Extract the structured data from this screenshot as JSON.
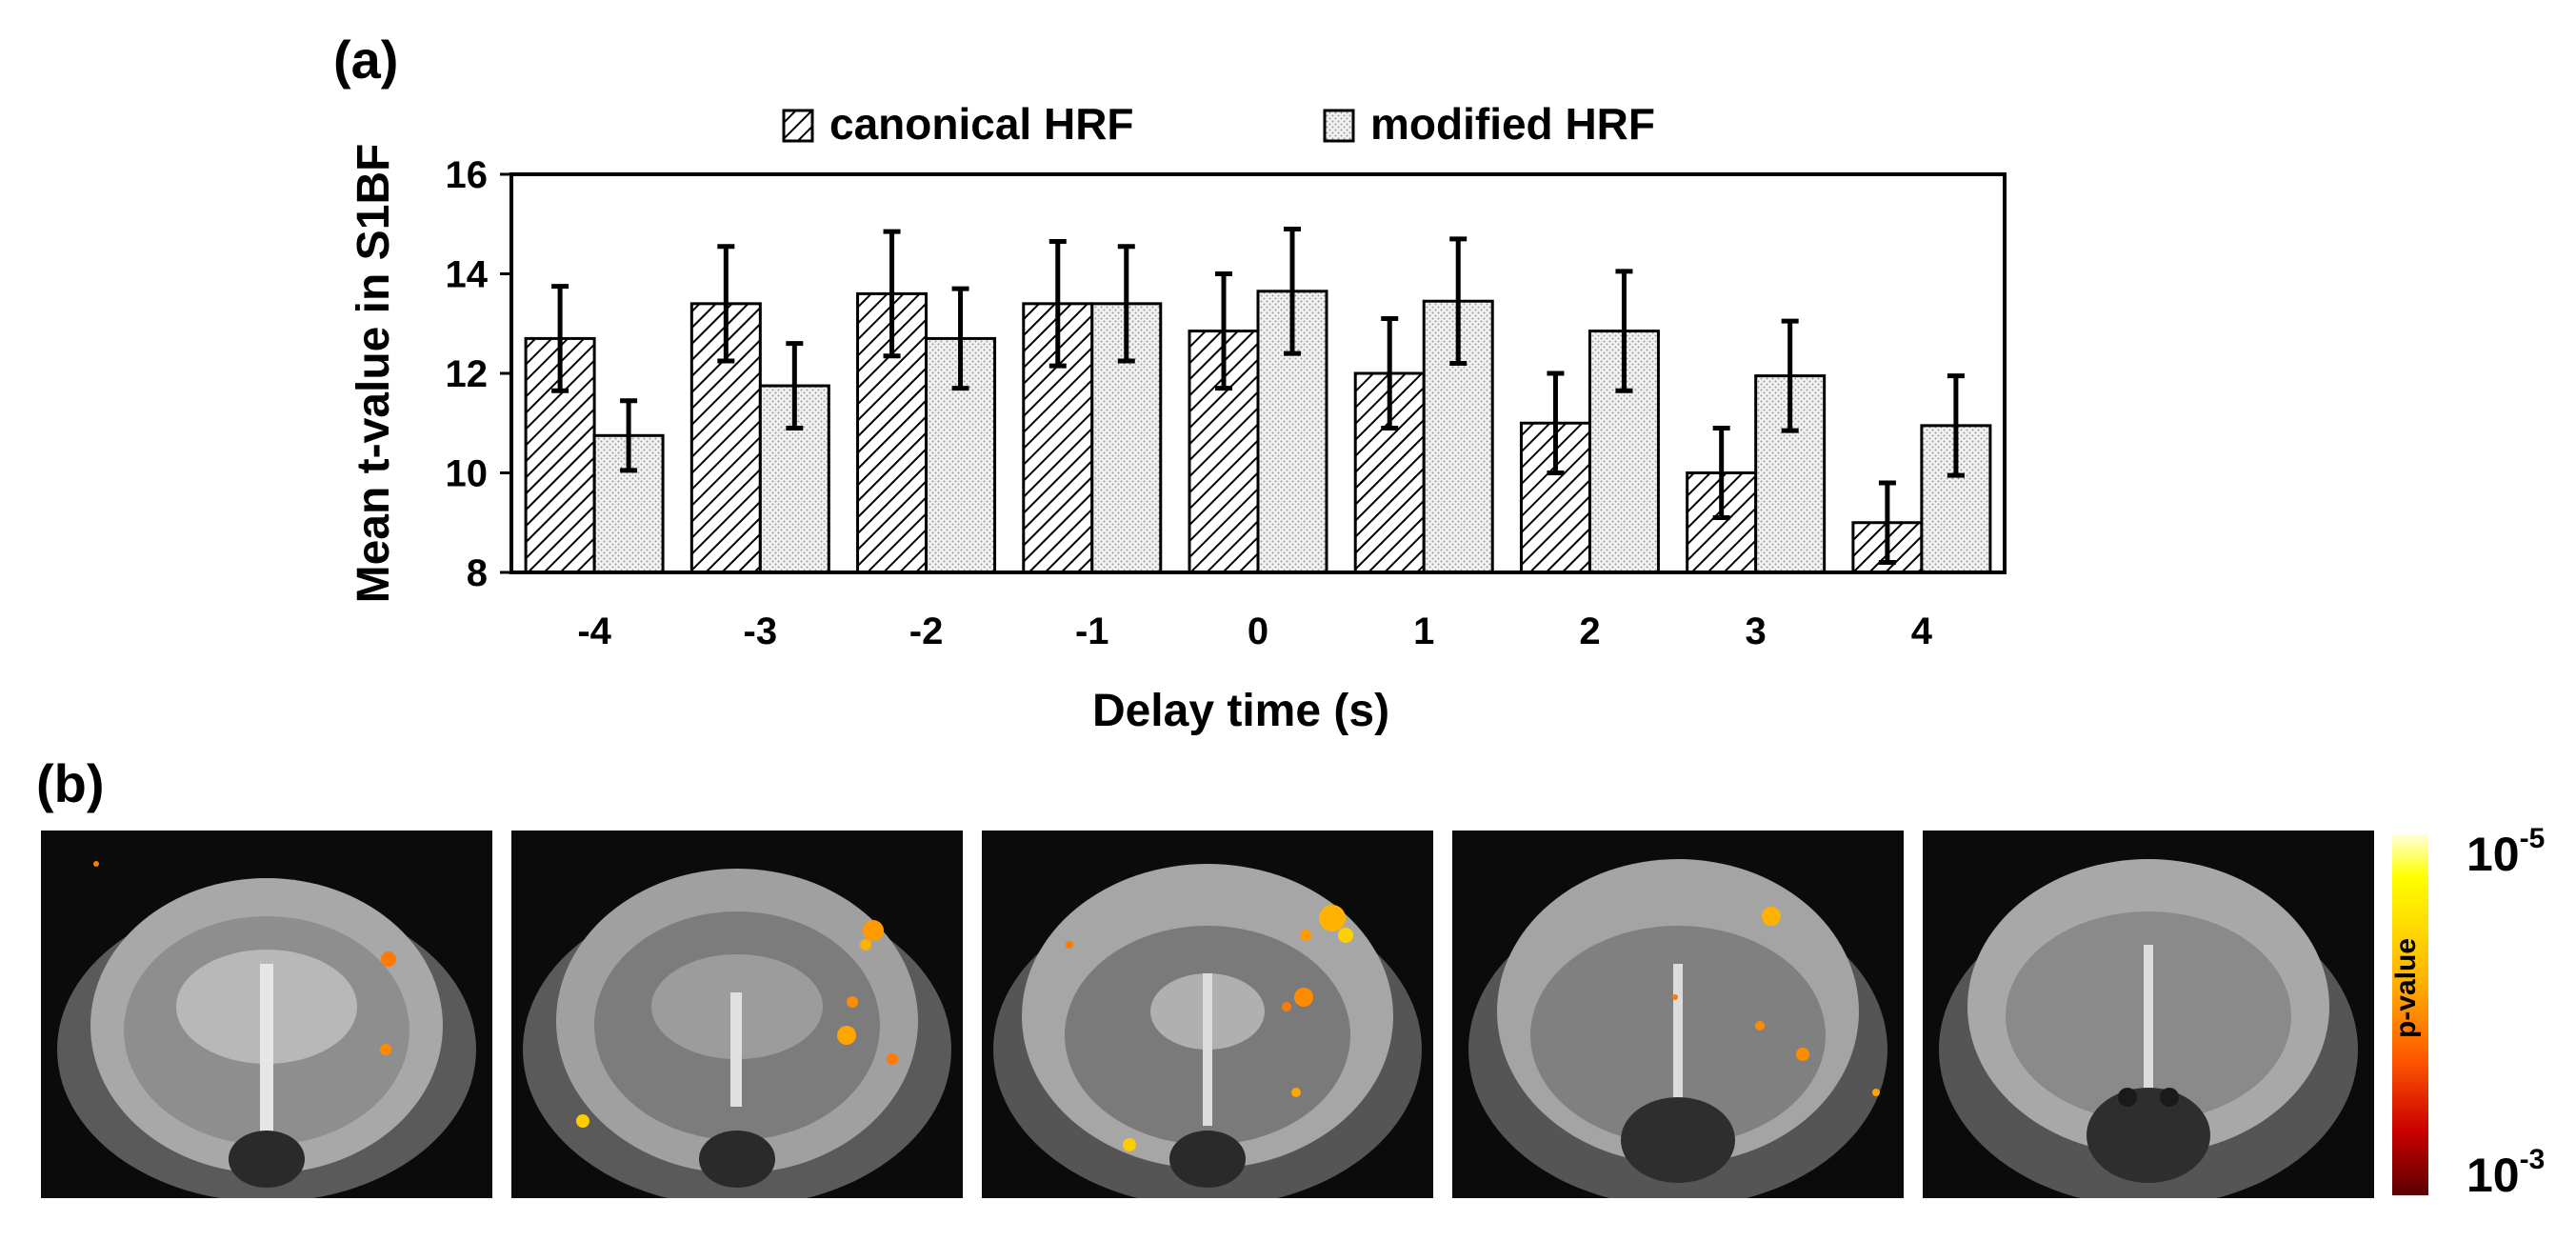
{
  "panel_a_label": "(a)",
  "panel_b_label": "(b)",
  "chart_data": {
    "type": "bar",
    "categories": [
      "-4",
      "-3",
      "-2",
      "-1",
      "0",
      "1",
      "2",
      "3",
      "4"
    ],
    "series": [
      {
        "name": "canonical HRF",
        "values": [
          12.7,
          13.4,
          13.6,
          13.4,
          12.85,
          12.0,
          11.0,
          10.0,
          9.0
        ],
        "errors": [
          1.05,
          1.15,
          1.25,
          1.25,
          1.15,
          1.1,
          1.0,
          0.9,
          0.8
        ]
      },
      {
        "name": "modified HRF",
        "values": [
          10.75,
          11.75,
          12.7,
          13.4,
          13.65,
          13.45,
          12.85,
          11.95,
          10.95
        ],
        "errors": [
          0.7,
          0.85,
          1.0,
          1.15,
          1.25,
          1.25,
          1.2,
          1.1,
          1.0
        ]
      }
    ],
    "xlabel": "Delay time (s)",
    "ylabel": "Mean t-value in S1BF",
    "ylim": [
      8,
      16
    ],
    "yticks": [
      "8",
      "10",
      "12",
      "14",
      "16"
    ],
    "legend_position": "top",
    "grid": false
  },
  "colorbar": {
    "title": "p-value",
    "top_base": "10",
    "top_exp": "-5",
    "bottom_base": "10",
    "bottom_exp": "-3"
  },
  "colors": {
    "bar_edge": "#000000",
    "canonical_hatch": "#000000",
    "modified_fill": "#d9d9d9",
    "activation_hot": "#ffcc00",
    "activation_warm": "#ff7a00"
  }
}
